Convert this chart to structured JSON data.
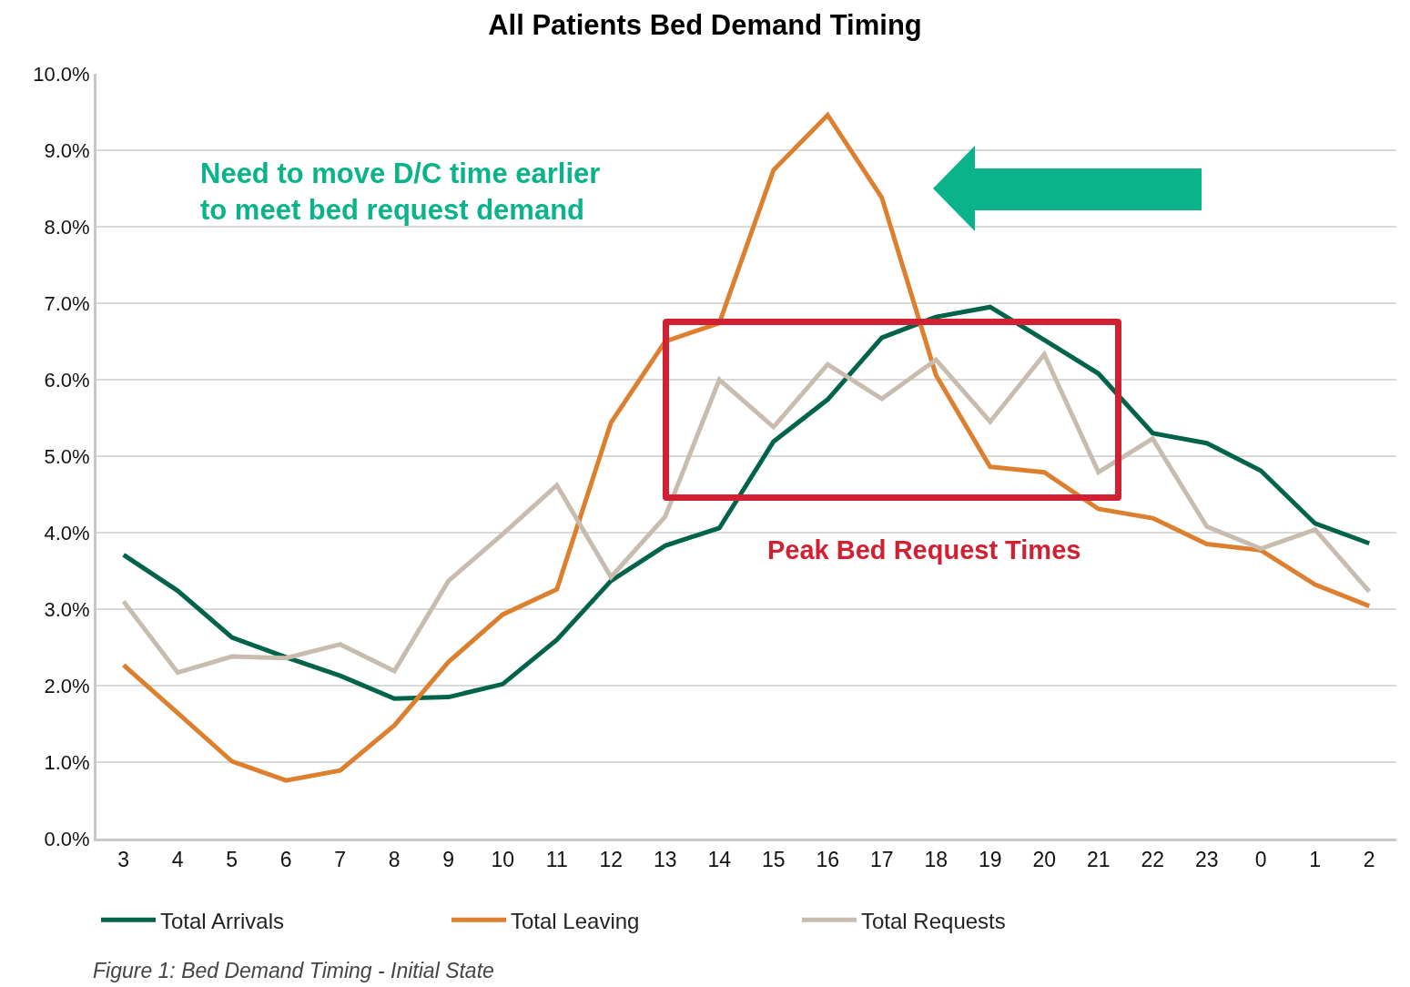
{
  "chart_data": {
    "type": "line",
    "title": "All Patients Bed Demand Timing",
    "categories": [
      "3",
      "4",
      "5",
      "6",
      "7",
      "8",
      "9",
      "10",
      "11",
      "12",
      "13",
      "14",
      "15",
      "16",
      "17",
      "18",
      "19",
      "20",
      "21",
      "22",
      "23",
      "0",
      "1",
      "2"
    ],
    "series": [
      {
        "name": "Total Arrivals",
        "color": "#00634a",
        "values": [
          3.71,
          3.24,
          2.63,
          2.37,
          2.13,
          1.83,
          1.85,
          2.02,
          2.6,
          3.37,
          3.83,
          4.06,
          5.19,
          5.74,
          6.55,
          6.82,
          6.95,
          6.52,
          6.08,
          5.3,
          5.17,
          4.81,
          4.12,
          3.86
        ]
      },
      {
        "name": "Total Leaving",
        "color": "#dc7f2e",
        "values": [
          2.27,
          1.64,
          1.01,
          0.76,
          0.89,
          1.48,
          2.31,
          2.93,
          3.26,
          5.44,
          6.5,
          6.74,
          8.74,
          9.46,
          8.38,
          6.06,
          4.86,
          4.79,
          4.31,
          4.19,
          3.85,
          3.77,
          3.32,
          3.04
        ]
      },
      {
        "name": "Total Requests",
        "color": "#c8bcaf",
        "values": [
          3.1,
          2.17,
          2.38,
          2.36,
          2.54,
          2.19,
          3.37,
          3.98,
          4.62,
          3.42,
          4.21,
          6.0,
          5.38,
          6.2,
          5.75,
          6.26,
          5.45,
          6.33,
          4.79,
          5.23,
          4.08,
          3.79,
          4.04,
          3.23
        ]
      }
    ],
    "ylim": [
      0,
      10
    ],
    "yticks": [
      {
        "value": 0,
        "label": "0.0%"
      },
      {
        "value": 1,
        "label": "1.0%"
      },
      {
        "value": 2,
        "label": "2.0%"
      },
      {
        "value": 3,
        "label": "3.0%"
      },
      {
        "value": 4,
        "label": "4.0%"
      },
      {
        "value": 5,
        "label": "5.0%"
      },
      {
        "value": 6,
        "label": "6.0%"
      },
      {
        "value": 7,
        "label": "7.0%"
      },
      {
        "value": 8,
        "label": "8.0%"
      },
      {
        "value": 9,
        "label": "9.0%"
      },
      {
        "value": 10,
        "label": "10.0%"
      }
    ],
    "grid": "y",
    "legend": "bottom",
    "marker": "none",
    "line_style": "solid",
    "annotations": [
      "Need to move D/C time earlier\nto meet bed request demand",
      "Peak Bed Request Times",
      "Figure 1: Bed Demand Timing - Initial State"
    ]
  }
}
